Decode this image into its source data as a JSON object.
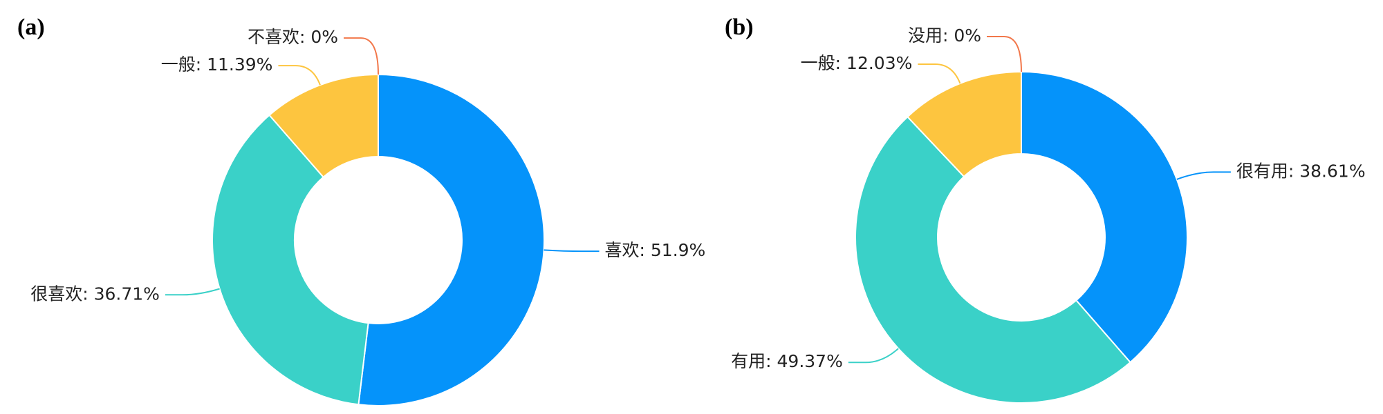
{
  "chart_data": [
    {
      "type": "donut",
      "title": "(a)",
      "values": [
        51.9,
        36.71,
        11.39,
        0
      ],
      "value_labels": [
        "喜欢: 51.9%",
        "很喜欢: 36.71%",
        "一般: 11.39%",
        "不喜欢: 0%"
      ],
      "colors": [
        "#0593fa",
        "#3ad1c8",
        "#fdc53f",
        "#f2774a"
      ]
    },
    {
      "type": "donut",
      "title": "(b)",
      "values": [
        38.61,
        49.37,
        12.03,
        0
      ],
      "value_labels": [
        "很有用: 38.61%",
        "有用: 49.37%",
        "一般: 12.03%",
        "没用: 0%"
      ],
      "colors": [
        "#0593fa",
        "#3ad1c8",
        "#fdc53f",
        "#f2774a"
      ]
    }
  ]
}
